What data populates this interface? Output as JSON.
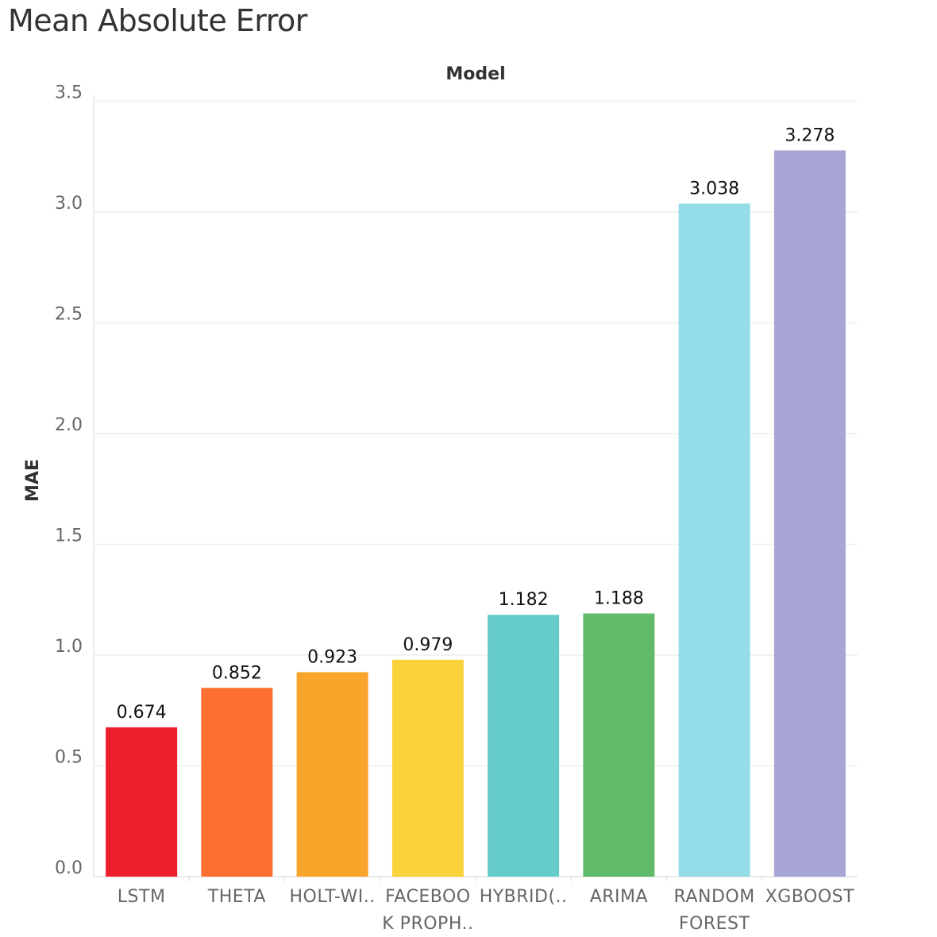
{
  "title": "Mean Absolute Error",
  "chart_data": {
    "type": "bar",
    "title": "Mean Absolute Error",
    "column_header": "Model",
    "ylabel": "MAE",
    "xlabel": "",
    "ylim": [
      0,
      3.5
    ],
    "yticks": [
      "0.0",
      "0.5",
      "1.0",
      "1.5",
      "2.0",
      "2.5",
      "3.0",
      "3.5"
    ],
    "grid": true,
    "categories": [
      [
        "LSTM"
      ],
      [
        "THETA"
      ],
      [
        "HOLT-WI.."
      ],
      [
        "FACEBOO",
        "K PROPH.."
      ],
      [
        "HYBRID(.."
      ],
      [
        "ARIMA"
      ],
      [
        "RANDOM",
        "FOREST"
      ],
      [
        "XGBOOST"
      ]
    ],
    "values": [
      0.674,
      0.852,
      0.923,
      0.979,
      1.182,
      1.188,
      3.038,
      3.278
    ],
    "value_labels": [
      "0.674",
      "0.852",
      "0.923",
      "0.979",
      "1.182",
      "1.188",
      "3.038",
      "3.278"
    ],
    "colors": [
      "#ED1F2D",
      "#FF6F31",
      "#F9A52B",
      "#FAD23B",
      "#66CCC9",
      "#5FBA69",
      "#93DCE8",
      "#A6A5D5"
    ]
  }
}
